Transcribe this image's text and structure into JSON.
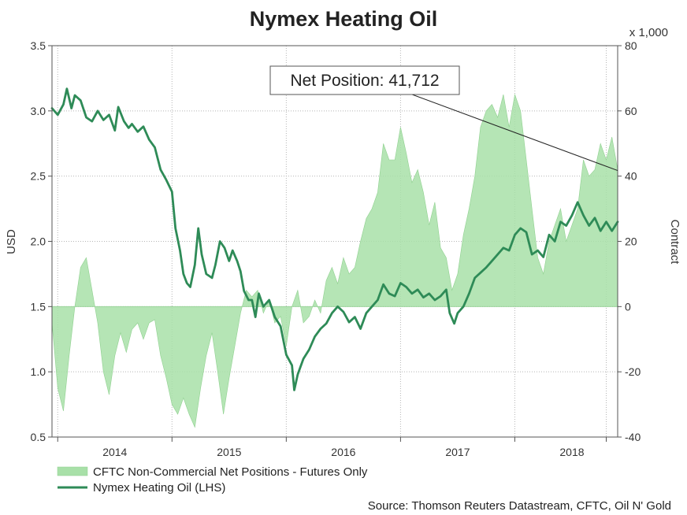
{
  "chart_data": {
    "type": "area+line",
    "title": "Nymex Heating Oil",
    "ylabel_left": "USD",
    "ylabel_right": "Contract",
    "right_axis_multiplier": "x 1,000",
    "ylim_left": [
      0.5,
      3.5
    ],
    "ylim_right": [
      -40,
      80
    ],
    "yticks_left": [
      "0.5",
      "1.0",
      "1.5",
      "2.0",
      "2.5",
      "3.0",
      "3.5"
    ],
    "yticks_right": [
      "-40",
      "-20",
      "0",
      "20",
      "40",
      "60",
      "80"
    ],
    "xlim": [
      2013.45,
      2018.4
    ],
    "x_ticks": [
      {
        "label": "2014",
        "x": 2014.0
      },
      {
        "label": "2015",
        "x": 2015.0
      },
      {
        "label": "2016",
        "x": 2016.0
      },
      {
        "label": "2017",
        "x": 2017.0
      },
      {
        "label": "2018",
        "x": 2018.0
      }
    ],
    "year_boundaries": [
      2013.5,
      2014.5,
      2015.5,
      2016.5,
      2017.5,
      2018.3
    ],
    "grid": true,
    "legend": [
      {
        "name": "CFTC Non-Commercial Net Positions - Futures Only",
        "style": "area",
        "color": "#a8e0a8"
      },
      {
        "name": "Nymex Heating Oil (LHS)",
        "style": "line",
        "color": "#2e8b57"
      }
    ],
    "annotation": {
      "text": "Net Position: 41,712",
      "value": 41.712,
      "x": 2018.4
    },
    "source": "Source: Thomson Reuters Datastream, CFTC, Oil N' Gold",
    "series": [
      {
        "name": "CFTC Non-Commercial Net Positions - Futures Only",
        "axis": "right",
        "units": "contracts x 1,000",
        "points": [
          [
            2013.45,
            -5
          ],
          [
            2013.5,
            -25
          ],
          [
            2013.55,
            -32
          ],
          [
            2013.6,
            -15
          ],
          [
            2013.65,
            0
          ],
          [
            2013.7,
            12
          ],
          [
            2013.75,
            15
          ],
          [
            2013.8,
            5
          ],
          [
            2013.85,
            -5
          ],
          [
            2013.9,
            -20
          ],
          [
            2013.95,
            -27
          ],
          [
            2014.0,
            -15
          ],
          [
            2014.05,
            -8
          ],
          [
            2014.1,
            -14
          ],
          [
            2014.15,
            -7
          ],
          [
            2014.2,
            -5
          ],
          [
            2014.25,
            -10
          ],
          [
            2014.3,
            -5
          ],
          [
            2014.35,
            -4
          ],
          [
            2014.4,
            -15
          ],
          [
            2014.45,
            -22
          ],
          [
            2014.5,
            -30
          ],
          [
            2014.55,
            -33
          ],
          [
            2014.6,
            -28
          ],
          [
            2014.65,
            -33
          ],
          [
            2014.7,
            -37
          ],
          [
            2014.75,
            -25
          ],
          [
            2014.8,
            -15
          ],
          [
            2014.85,
            -8
          ],
          [
            2014.9,
            -20
          ],
          [
            2014.95,
            -33
          ],
          [
            2015.0,
            -22
          ],
          [
            2015.05,
            -12
          ],
          [
            2015.1,
            -2
          ],
          [
            2015.15,
            5
          ],
          [
            2015.2,
            3
          ],
          [
            2015.25,
            5
          ],
          [
            2015.3,
            -2
          ],
          [
            2015.35,
            2
          ],
          [
            2015.4,
            -5
          ],
          [
            2015.45,
            -3
          ],
          [
            2015.5,
            -12
          ],
          [
            2015.55,
            0
          ],
          [
            2015.6,
            5
          ],
          [
            2015.65,
            -5
          ],
          [
            2015.7,
            -3
          ],
          [
            2015.75,
            2
          ],
          [
            2015.8,
            -2
          ],
          [
            2015.85,
            8
          ],
          [
            2015.9,
            12
          ],
          [
            2015.95,
            7
          ],
          [
            2016.0,
            15
          ],
          [
            2016.05,
            10
          ],
          [
            2016.1,
            12
          ],
          [
            2016.15,
            20
          ],
          [
            2016.2,
            27
          ],
          [
            2016.25,
            30
          ],
          [
            2016.3,
            35
          ],
          [
            2016.35,
            50
          ],
          [
            2016.4,
            45
          ],
          [
            2016.45,
            45
          ],
          [
            2016.5,
            55
          ],
          [
            2016.55,
            47
          ],
          [
            2016.6,
            38
          ],
          [
            2016.65,
            42
          ],
          [
            2016.7,
            35
          ],
          [
            2016.75,
            25
          ],
          [
            2016.8,
            32
          ],
          [
            2016.85,
            18
          ],
          [
            2016.9,
            15
          ],
          [
            2016.95,
            5
          ],
          [
            2017.0,
            10
          ],
          [
            2017.05,
            22
          ],
          [
            2017.1,
            30
          ],
          [
            2017.15,
            40
          ],
          [
            2017.2,
            55
          ],
          [
            2017.25,
            60
          ],
          [
            2017.3,
            62
          ],
          [
            2017.35,
            58
          ],
          [
            2017.4,
            65
          ],
          [
            2017.45,
            55
          ],
          [
            2017.5,
            65
          ],
          [
            2017.55,
            60
          ],
          [
            2017.6,
            45
          ],
          [
            2017.65,
            30
          ],
          [
            2017.7,
            15
          ],
          [
            2017.75,
            10
          ],
          [
            2017.8,
            20
          ],
          [
            2017.85,
            25
          ],
          [
            2017.9,
            30
          ],
          [
            2017.95,
            20
          ],
          [
            2018.0,
            25
          ],
          [
            2018.05,
            30
          ],
          [
            2018.1,
            45
          ],
          [
            2018.15,
            40
          ],
          [
            2018.2,
            42
          ],
          [
            2018.25,
            50
          ],
          [
            2018.3,
            45
          ],
          [
            2018.35,
            52
          ],
          [
            2018.4,
            42
          ]
        ]
      },
      {
        "name": "Nymex Heating Oil (LHS)",
        "axis": "left",
        "units": "USD",
        "points": [
          [
            2013.45,
            3.02
          ],
          [
            2013.5,
            2.97
          ],
          [
            2013.55,
            3.05
          ],
          [
            2013.58,
            3.17
          ],
          [
            2013.62,
            3.02
          ],
          [
            2013.65,
            3.12
          ],
          [
            2013.7,
            3.08
          ],
          [
            2013.75,
            2.95
          ],
          [
            2013.8,
            2.92
          ],
          [
            2013.85,
            3.0
          ],
          [
            2013.9,
            2.93
          ],
          [
            2013.95,
            2.97
          ],
          [
            2014.0,
            2.85
          ],
          [
            2014.03,
            3.03
          ],
          [
            2014.08,
            2.92
          ],
          [
            2014.12,
            2.87
          ],
          [
            2014.15,
            2.9
          ],
          [
            2014.2,
            2.84
          ],
          [
            2014.25,
            2.88
          ],
          [
            2014.3,
            2.78
          ],
          [
            2014.35,
            2.72
          ],
          [
            2014.4,
            2.55
          ],
          [
            2014.45,
            2.47
          ],
          [
            2014.5,
            2.38
          ],
          [
            2014.53,
            2.1
          ],
          [
            2014.57,
            1.93
          ],
          [
            2014.6,
            1.75
          ],
          [
            2014.63,
            1.68
          ],
          [
            2014.66,
            1.65
          ],
          [
            2014.7,
            1.82
          ],
          [
            2014.73,
            2.1
          ],
          [
            2014.76,
            1.9
          ],
          [
            2014.8,
            1.75
          ],
          [
            2014.85,
            1.72
          ],
          [
            2014.88,
            1.82
          ],
          [
            2014.92,
            2.0
          ],
          [
            2014.96,
            1.95
          ],
          [
            2015.0,
            1.85
          ],
          [
            2015.03,
            1.93
          ],
          [
            2015.07,
            1.85
          ],
          [
            2015.1,
            1.77
          ],
          [
            2015.13,
            1.62
          ],
          [
            2015.17,
            1.55
          ],
          [
            2015.2,
            1.55
          ],
          [
            2015.23,
            1.42
          ],
          [
            2015.26,
            1.6
          ],
          [
            2015.3,
            1.5
          ],
          [
            2015.35,
            1.55
          ],
          [
            2015.4,
            1.42
          ],
          [
            2015.45,
            1.35
          ],
          [
            2015.5,
            1.13
          ],
          [
            2015.55,
            1.05
          ],
          [
            2015.57,
            0.86
          ],
          [
            2015.6,
            0.98
          ],
          [
            2015.65,
            1.1
          ],
          [
            2015.7,
            1.17
          ],
          [
            2015.75,
            1.27
          ],
          [
            2015.8,
            1.33
          ],
          [
            2015.85,
            1.37
          ],
          [
            2015.9,
            1.45
          ],
          [
            2015.95,
            1.5
          ],
          [
            2016.0,
            1.46
          ],
          [
            2016.05,
            1.38
          ],
          [
            2016.1,
            1.42
          ],
          [
            2016.15,
            1.33
          ],
          [
            2016.2,
            1.45
          ],
          [
            2016.25,
            1.5
          ],
          [
            2016.3,
            1.55
          ],
          [
            2016.35,
            1.67
          ],
          [
            2016.4,
            1.6
          ],
          [
            2016.45,
            1.58
          ],
          [
            2016.5,
            1.68
          ],
          [
            2016.55,
            1.65
          ],
          [
            2016.6,
            1.6
          ],
          [
            2016.65,
            1.63
          ],
          [
            2016.7,
            1.57
          ],
          [
            2016.75,
            1.6
          ],
          [
            2016.8,
            1.55
          ],
          [
            2016.85,
            1.58
          ],
          [
            2016.9,
            1.63
          ],
          [
            2016.93,
            1.45
          ],
          [
            2016.97,
            1.37
          ],
          [
            2017.0,
            1.45
          ],
          [
            2017.05,
            1.5
          ],
          [
            2017.1,
            1.6
          ],
          [
            2017.15,
            1.72
          ],
          [
            2017.2,
            1.76
          ],
          [
            2017.25,
            1.8
          ],
          [
            2017.3,
            1.85
          ],
          [
            2017.35,
            1.9
          ],
          [
            2017.4,
            1.95
          ],
          [
            2017.45,
            1.93
          ],
          [
            2017.5,
            2.05
          ],
          [
            2017.55,
            2.1
          ],
          [
            2017.6,
            2.07
          ],
          [
            2017.65,
            1.9
          ],
          [
            2017.7,
            1.93
          ],
          [
            2017.75,
            1.88
          ],
          [
            2017.8,
            2.05
          ],
          [
            2017.85,
            2.0
          ],
          [
            2017.9,
            2.15
          ],
          [
            2017.95,
            2.12
          ],
          [
            2018.0,
            2.2
          ],
          [
            2018.05,
            2.3
          ],
          [
            2018.1,
            2.2
          ],
          [
            2018.15,
            2.12
          ],
          [
            2018.2,
            2.18
          ],
          [
            2018.25,
            2.08
          ],
          [
            2018.3,
            2.15
          ],
          [
            2018.35,
            2.08
          ],
          [
            2018.4,
            2.15
          ]
        ]
      }
    ]
  }
}
